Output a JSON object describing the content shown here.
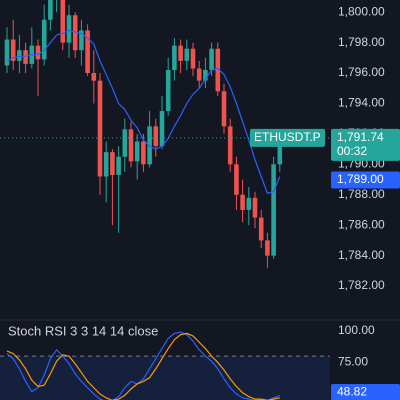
{
  "chart_data": [
    {
      "type": "candlestick",
      "symbol": "ETHUSDT.P",
      "last_price": {
        "value": 1791.74,
        "label": "1,791.74"
      },
      "countdown": "00:32",
      "crosshair_price": {
        "value": 1789.0,
        "label": "1,789.00"
      },
      "up_color": "#26a69a",
      "down_color": "#ef5350",
      "price_color": "#2962ff",
      "categories": [
        null,
        null,
        null,
        null,
        null,
        null,
        null,
        null,
        null,
        null,
        null,
        null,
        null,
        null,
        null,
        null,
        null,
        null,
        null,
        null,
        null,
        null,
        null,
        null,
        null,
        null,
        null,
        null,
        null,
        null,
        null,
        null,
        null,
        null,
        null,
        null,
        null,
        null,
        null,
        null,
        null,
        null,
        null,
        null,
        null
      ],
      "open": [
        1796.5,
        1798.2,
        1796.8,
        1797.5,
        1796.6,
        1797.8,
        1796.9,
        1799.5,
        1800.8,
        1801.2,
        1798,
        1799.8,
        1797.5,
        1798.8,
        1796,
        1795.5,
        1789.2,
        1790.8,
        1789.3,
        1790.5,
        1792.3,
        1790.2,
        1791.5,
        1790,
        1792.5,
        1791.2,
        1793.5,
        1796.2,
        1797.8,
        1796.8,
        1797.6,
        1796.3,
        1795.5,
        1796.2,
        1797.6,
        1794.8,
        1792.5,
        1790,
        1788,
        1787,
        1787.8,
        1786.5,
        1785,
        1784,
        1790
      ],
      "high": [
        1799,
        1799.5,
        1798.5,
        1798,
        1799,
        1798.2,
        1800.5,
        1801,
        1801.5,
        1801.5,
        1800.5,
        1800,
        1799.5,
        1799.2,
        1797.5,
        1796,
        1791.5,
        1791,
        1791.2,
        1793,
        1792.8,
        1792,
        1792,
        1793.5,
        1793,
        1794.5,
        1797,
        1798.3,
        1798.2,
        1798.2,
        1798,
        1796.8,
        1797,
        1798,
        1798,
        1795.3,
        1793,
        1790.5,
        1789,
        1788.5,
        1788.2,
        1787,
        1785.5,
        1790.5,
        1792
      ],
      "low": [
        1796,
        1796.2,
        1796,
        1796,
        1796.3,
        1794.5,
        1796.5,
        1798.8,
        1800,
        1797.5,
        1797,
        1797,
        1796.5,
        1795.8,
        1794,
        1788,
        1787.5,
        1786,
        1785.5,
        1789.5,
        1789.8,
        1789,
        1789.5,
        1789.8,
        1790.5,
        1791,
        1793.2,
        1795.5,
        1796,
        1796.2,
        1795.8,
        1795,
        1795,
        1795.8,
        1794.5,
        1792,
        1789.5,
        1787,
        1786.2,
        1786,
        1785.8,
        1784.5,
        1783.2,
        1783.8,
        1789.5
      ],
      "close": [
        1798.2,
        1796.8,
        1797.5,
        1796.6,
        1797.8,
        1796.9,
        1799.5,
        1800.8,
        1801.2,
        1798,
        1799.8,
        1797.5,
        1798.8,
        1796,
        1795.5,
        1789.2,
        1790.8,
        1789.3,
        1790.5,
        1792.3,
        1790.2,
        1791.5,
        1790,
        1792.5,
        1791.2,
        1793.5,
        1796.2,
        1797.8,
        1796.8,
        1797.6,
        1796.3,
        1795.5,
        1796.2,
        1797.6,
        1794.8,
        1792.5,
        1790,
        1788,
        1787,
        1787.8,
        1786.5,
        1785,
        1784,
        1790,
        1791.74
      ],
      "overlays": [
        {
          "color": "#2962ff",
          "values": [
            1796.8,
            1797,
            1797.1,
            1797.1,
            1797.2,
            1797.2,
            1797.5,
            1798,
            1798.5,
            1798.6,
            1798.8,
            1798.7,
            1798.6,
            1798.3,
            1797.9,
            1796.8,
            1795.9,
            1795,
            1794,
            1793.6,
            1792.9,
            1792.4,
            1791.6,
            1791.2,
            1791,
            1791.2,
            1791.7,
            1792.5,
            1793.2,
            1794,
            1794.6,
            1795,
            1795.6,
            1796.2,
            1796.3,
            1795.9,
            1795.1,
            1794,
            1792.8,
            1791.6,
            1790.3,
            1789.2,
            1788.1,
            1788.2,
            1789.2
          ]
        }
      ],
      "ylim": [
        1779.9,
        1800.8
      ],
      "yticks": [
        {
          "value": 1800,
          "label": "1,800.00"
        },
        {
          "value": 1798,
          "label": "1,798.00"
        },
        {
          "value": 1796,
          "label": "1,796.00"
        },
        {
          "value": 1794,
          "label": "1,794.00"
        },
        {
          "value": 1792,
          "label": "1,792.00"
        },
        {
          "value": 1790,
          "label": "1,790.00"
        },
        {
          "value": 1788,
          "label": "1,788.00"
        },
        {
          "value": 1786,
          "label": "1,786.00"
        },
        {
          "value": 1784,
          "label": "1,784.00"
        },
        {
          "value": 1782,
          "label": "1,782.00"
        }
      ]
    },
    {
      "type": "line",
      "title": "Stoch RSI 3 3 14 14 close",
      "categories": [
        null,
        null,
        null,
        null,
        null,
        null,
        null,
        null,
        null,
        null,
        null,
        null,
        null,
        null,
        null,
        null,
        null,
        null,
        null,
        null,
        null,
        null,
        null,
        null,
        null,
        null,
        null,
        null,
        null,
        null,
        null,
        null,
        null,
        null,
        null,
        null,
        null,
        null,
        null,
        null,
        null,
        null,
        null,
        null,
        null
      ],
      "series": [
        {
          "color": "#2962ff",
          "values": [
            82,
            78,
            70,
            60,
            52,
            55,
            65,
            78,
            85,
            80,
            74,
            66,
            60,
            55,
            50,
            46,
            44,
            45,
            48,
            55,
            60,
            58,
            62,
            70,
            78,
            86,
            94,
            98,
            99,
            97,
            92,
            85,
            80,
            76,
            70,
            62,
            55,
            50,
            47,
            46,
            45,
            46,
            45,
            47,
            48.82
          ]
        },
        {
          "color": "#ff9800",
          "values": [
            84,
            82,
            77,
            70,
            61,
            56,
            57,
            66,
            76,
            81,
            80,
            74,
            67,
            60,
            55,
            50,
            47,
            45,
            46,
            49,
            54,
            58,
            60,
            63,
            70,
            78,
            86,
            93,
            97,
            98,
            96,
            91,
            86,
            80,
            75,
            69,
            62,
            56,
            51,
            48,
            46,
            46,
            45,
            46,
            47
          ]
        }
      ],
      "value_labels": {
        "series": 0,
        "index": 44,
        "label": "48.82"
      },
      "bands": [
        80
      ],
      "ylim": [
        45.3,
        107.8
      ],
      "yticks": [
        {
          "value": 100,
          "label": "100.00"
        },
        {
          "value": 75,
          "label": "75.00"
        }
      ]
    }
  ]
}
